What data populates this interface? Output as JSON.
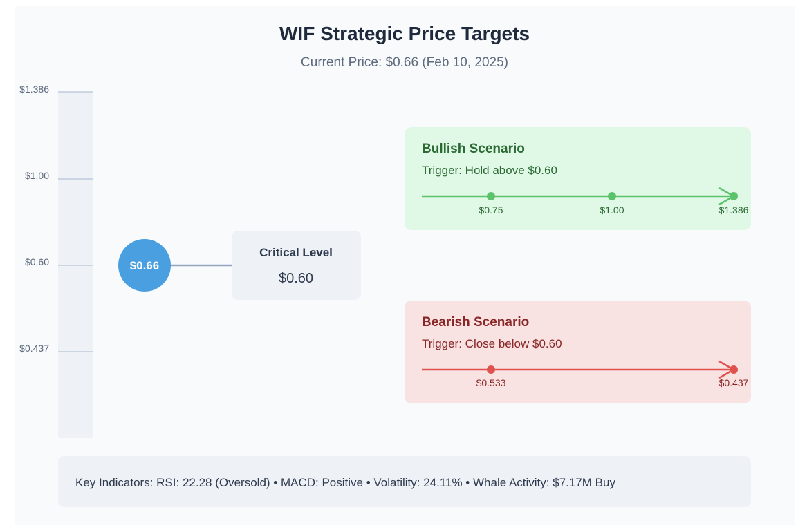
{
  "header": {
    "title": "WIF Strategic Price Targets",
    "subtitle": "Current Price: $0.66 (Feb 10, 2025)"
  },
  "scale": {
    "labels": [
      "$1.386",
      "$1.00",
      "$0.60",
      "$0.437"
    ]
  },
  "current_price": {
    "label": "$0.66"
  },
  "critical_level": {
    "title": "Critical Level",
    "value": "$0.60"
  },
  "bullish": {
    "title": "Bullish Scenario",
    "trigger": "Trigger: Hold above $0.60",
    "targets": [
      "$0.75",
      "$1.00",
      "$1.386"
    ]
  },
  "bearish": {
    "title": "Bearish Scenario",
    "trigger": "Trigger: Close below $0.60",
    "targets": [
      "$0.533",
      "$0.437"
    ]
  },
  "indicators": {
    "text": "Key Indicators: RSI: 22.28 (Oversold) • MACD: Positive • Volatility: 24.11% • Whale Activity: $7.17M Buy"
  },
  "colors": {
    "bullish_line": "#5cc36b",
    "bearish_line": "#e0524e",
    "current_bubble": "#4a9fe0"
  }
}
